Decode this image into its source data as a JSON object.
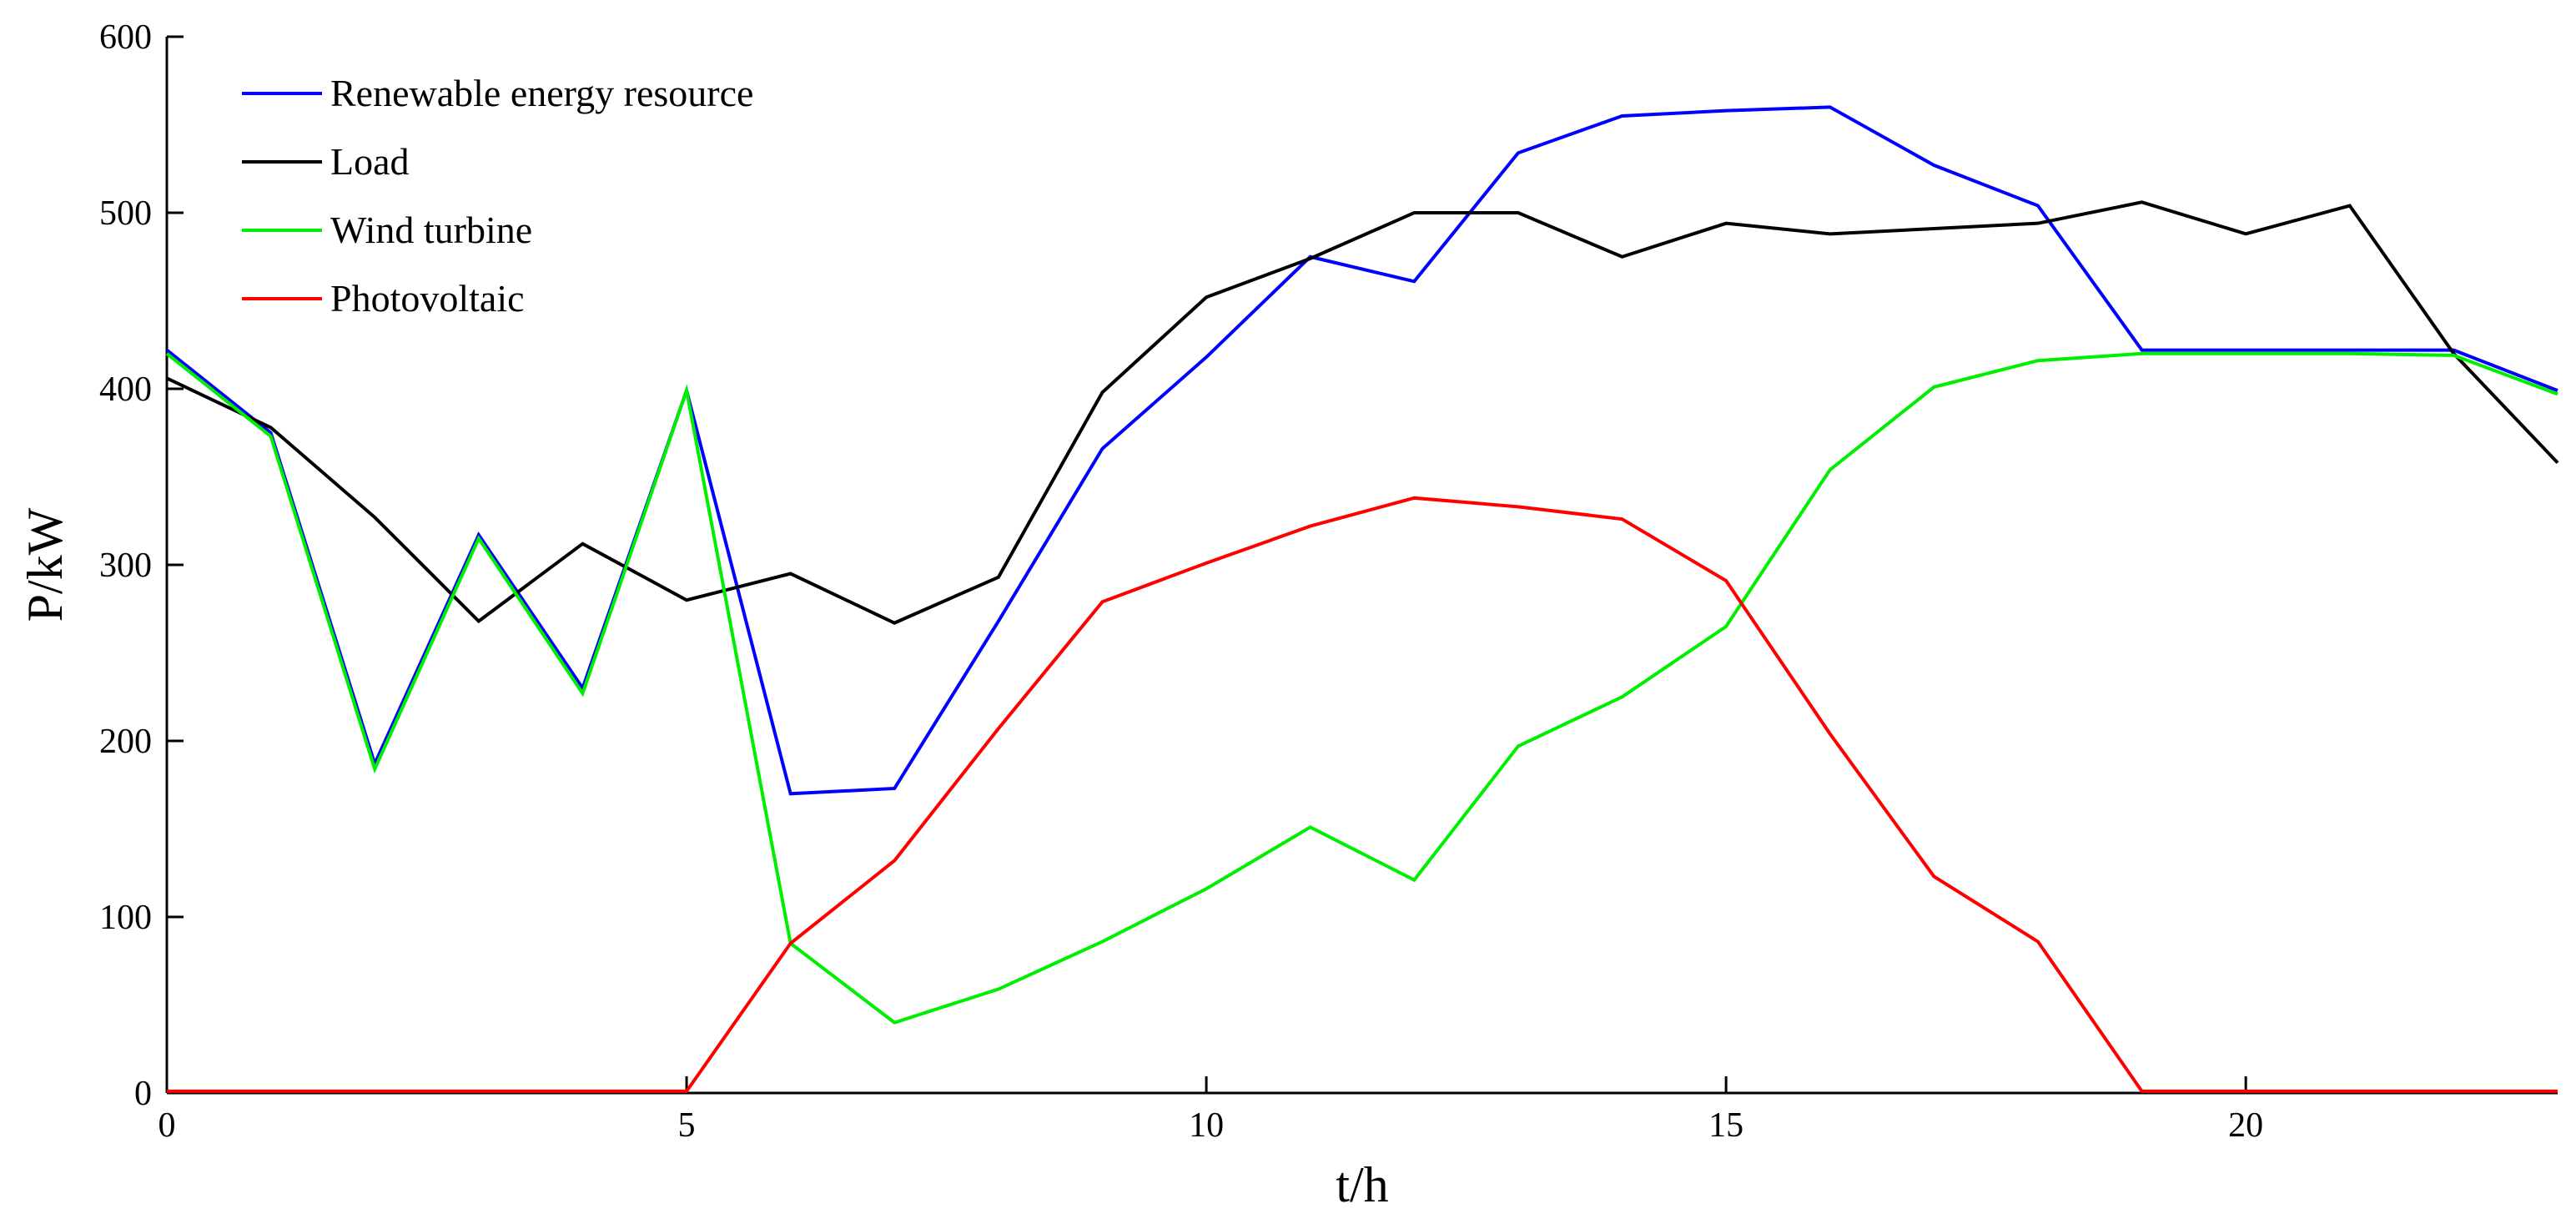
{
  "chart_data": {
    "type": "line",
    "title": "",
    "xlabel": "t/h",
    "ylabel": "P/kW",
    "xlim": [
      0,
      23
    ],
    "ylim": [
      0,
      600
    ],
    "xticks": [
      0,
      5,
      10,
      15,
      20
    ],
    "yticks": [
      0,
      100,
      200,
      300,
      400,
      500,
      600
    ],
    "grid": false,
    "legend_position": "top-left",
    "x": [
      0,
      1,
      2,
      3,
      4,
      5,
      6,
      7,
      8,
      9,
      10,
      11,
      12,
      13,
      14,
      15,
      16,
      17,
      18,
      19,
      20,
      21,
      22,
      23
    ],
    "series": [
      {
        "name": "Renewable energy resource",
        "color": "#0000ff",
        "values": [
          422,
          375,
          187,
          317,
          230,
          399,
          170,
          173,
          268,
          366,
          418,
          475,
          461,
          534,
          555,
          558,
          560,
          527,
          504,
          422,
          422,
          422,
          422,
          399
        ]
      },
      {
        "name": "Load",
        "color": "#000000",
        "values": [
          406,
          378,
          327,
          268,
          312,
          280,
          295,
          267,
          293,
          398,
          452,
          474,
          500,
          500,
          475,
          494,
          488,
          491,
          494,
          506,
          488,
          504,
          420,
          358
        ]
      },
      {
        "name": "Wind turbine",
        "color": "#00ee00",
        "values": [
          420,
          373,
          184,
          315,
          227,
          399,
          85,
          40,
          59,
          86,
          116,
          151,
          121,
          197,
          225,
          265,
          354,
          401,
          416,
          420,
          420,
          420,
          419,
          397
        ]
      },
      {
        "name": "Photovoltaic",
        "color": "#ff0000",
        "values": [
          1,
          1,
          1,
          1,
          1,
          1,
          85,
          132,
          207,
          279,
          301,
          322,
          338,
          333,
          326,
          291,
          204,
          123,
          86,
          1,
          1,
          1,
          1,
          1
        ]
      }
    ]
  }
}
